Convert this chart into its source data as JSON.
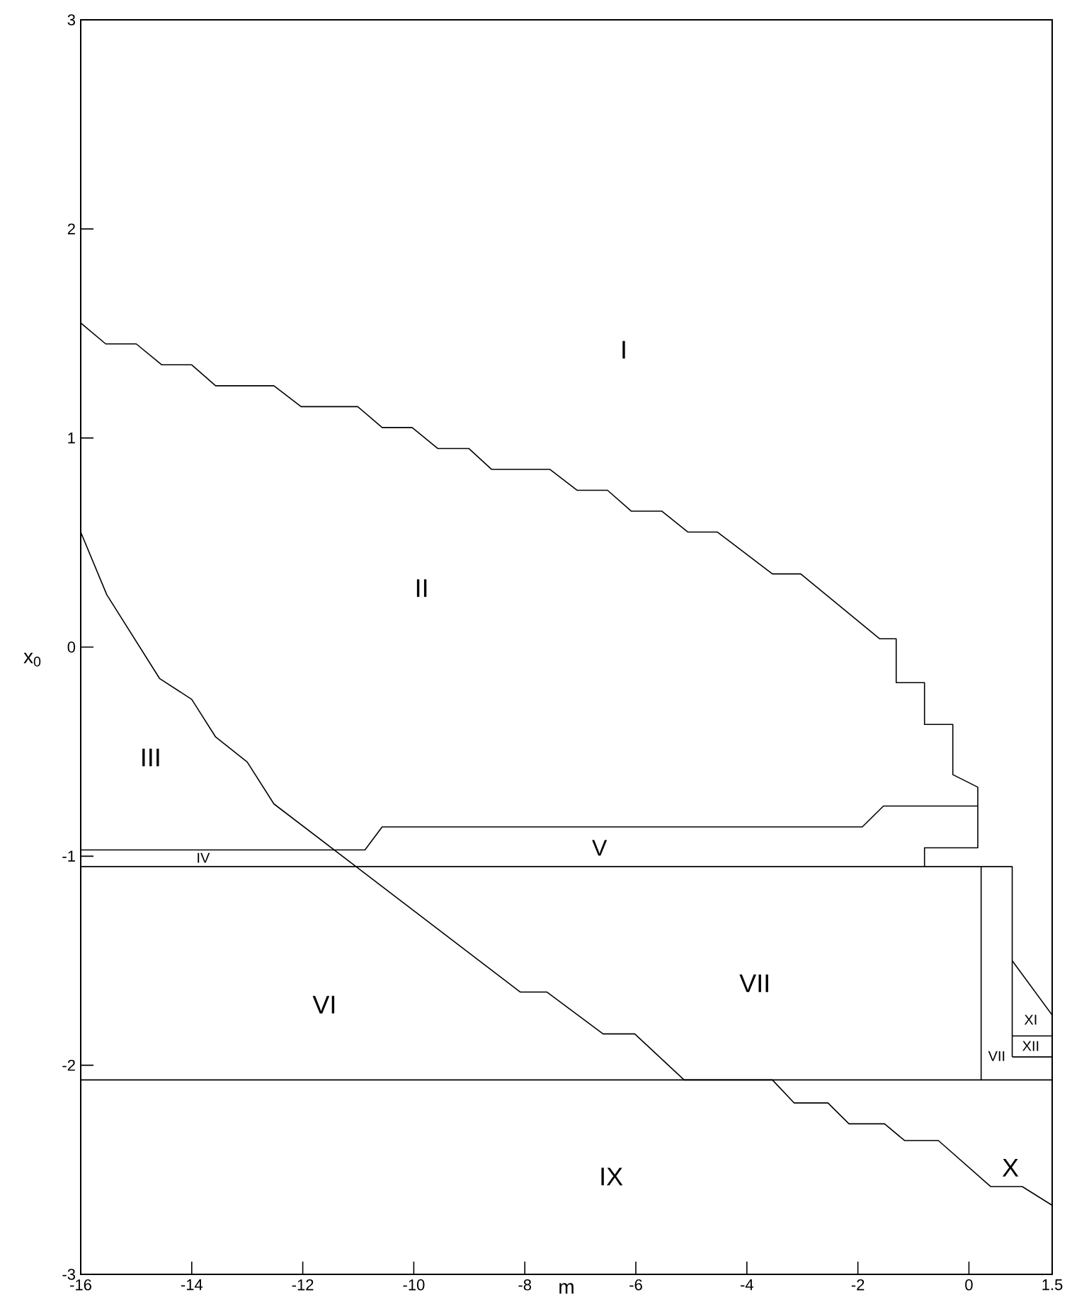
{
  "chart_data": {
    "type": "line",
    "xlabel": "m",
    "ylabel": "x$_{0}$",
    "xlim": [
      -16,
      1.5
    ],
    "ylim": [
      -3,
      3
    ],
    "xticks": [
      -16,
      -14,
      -12,
      -10,
      -8,
      -6,
      -4,
      -2,
      0,
      1.5
    ],
    "yticks": [
      -3,
      -2,
      -1,
      0,
      1,
      2,
      3
    ],
    "grid": false,
    "line_style": "solid",
    "series": [
      {
        "color": "#000000",
        "x": [
          -16,
          -15.55,
          -15.0,
          -14.54,
          -14.0,
          -13.57,
          -12.52,
          -12.03,
          -11.01,
          -10.57,
          -10.03,
          -9.57,
          -9.01,
          -8.6,
          -7.55,
          -7.06,
          -6.51,
          -6.08,
          -5.53,
          -5.06,
          -4.53,
          -3.54,
          -3.03,
          -1.61,
          -1.31,
          -1.31,
          -0.8,
          -0.8,
          -0.29,
          -0.29,
          0.16,
          0.16,
          -0.8,
          -0.8
        ],
        "values": [
          1.55,
          1.45,
          1.45,
          1.35,
          1.35,
          1.25,
          1.25,
          1.15,
          1.15,
          1.05,
          1.05,
          0.95,
          0.95,
          0.85,
          0.85,
          0.75,
          0.75,
          0.65,
          0.65,
          0.55,
          0.55,
          0.35,
          0.35,
          0.04,
          0.04,
          -0.17,
          -0.17,
          -0.37,
          -0.37,
          -0.61,
          -0.67,
          -0.96,
          -0.96,
          -1.05
        ]
      },
      {
        "color": "#000000",
        "x": [
          -16,
          -10.88,
          -10.57,
          -1.92,
          -1.54,
          0.16
        ],
        "values": [
          -0.97,
          -0.97,
          -0.86,
          -0.86,
          -0.76,
          -0.76
        ]
      },
      {
        "color": "#000000",
        "x": [
          -16,
          0.78,
          0.78
        ],
        "values": [
          -1.05,
          -1.05,
          -1.96
        ]
      },
      {
        "color": "#000000",
        "x": [
          0.78,
          1.5
        ],
        "values": [
          -1.5,
          -1.76
        ]
      },
      {
        "color": "#000000",
        "x": [
          0.78,
          1.5
        ],
        "values": [
          -1.86,
          -1.86
        ]
      },
      {
        "color": "#000000",
        "x": [
          0.78,
          1.5
        ],
        "values": [
          -1.96,
          -1.96
        ]
      },
      {
        "color": "#000000",
        "x": [
          0.22,
          0.22
        ],
        "values": [
          -1.05,
          -2.07
        ]
      },
      {
        "color": "#000000",
        "x": [
          -16,
          1.5
        ],
        "values": [
          -2.07,
          -2.07
        ]
      },
      {
        "color": "#000000",
        "x": [
          -16,
          -15.53,
          -14.58,
          -14.0,
          -13.57,
          -13.0,
          -12.52,
          -8.08,
          -7.6,
          -6.59,
          -6.02,
          -5.13,
          -3.54,
          -3.15,
          -2.54,
          -2.16,
          -1.52,
          -1.16,
          -0.55,
          0.39,
          0.96,
          1.5
        ],
        "values": [
          0.55,
          0.25,
          -0.15,
          -0.25,
          -0.43,
          -0.55,
          -0.75,
          -1.65,
          -1.65,
          -1.85,
          -1.85,
          -2.07,
          -2.07,
          -2.18,
          -2.18,
          -2.28,
          -2.28,
          -2.36,
          -2.36,
          -2.58,
          -2.58,
          -2.67
        ]
      }
    ],
    "annotations": [
      "I",
      "II",
      "III",
      "IV",
      "V",
      "VI",
      "VII",
      "VII",
      "XI",
      "XII",
      "X",
      "IX"
    ]
  }
}
